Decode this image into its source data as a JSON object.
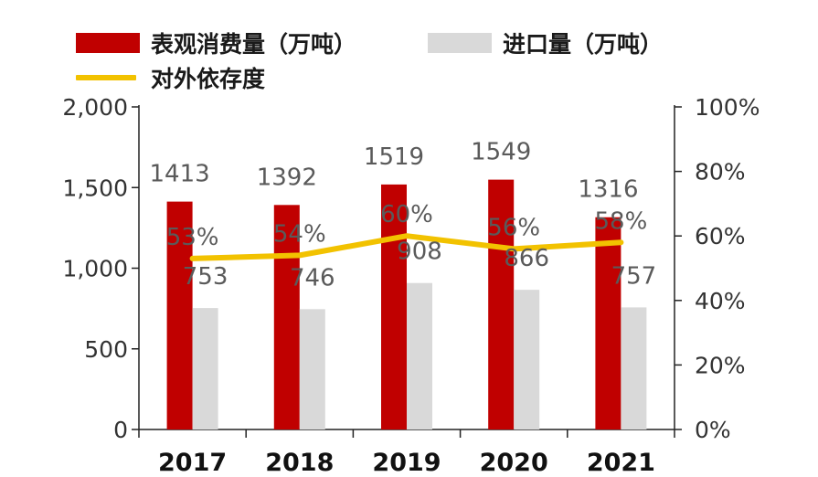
{
  "legend": {
    "items": [
      {
        "label": "表观消费量（万吨）",
        "color": "#c00000",
        "kind": "bar"
      },
      {
        "label": "进口量（万吨）",
        "color": "#d9d9d9",
        "kind": "bar"
      },
      {
        "label": "对外依存度",
        "color": "#f2c200",
        "kind": "line"
      }
    ]
  },
  "chart_data": {
    "type": "bar",
    "categories": [
      "2017",
      "2018",
      "2019",
      "2020",
      "2021"
    ],
    "series": [
      {
        "name": "表观消费量（万吨）",
        "type": "bar",
        "axis": "left",
        "color": "#c00000",
        "values": [
          1413,
          1392,
          1519,
          1549,
          1316
        ],
        "labels": [
          "1413",
          "1392",
          "1519",
          "1549",
          "1316"
        ]
      },
      {
        "name": "进口量（万吨）",
        "type": "bar",
        "axis": "left",
        "color": "#d9d9d9",
        "values": [
          753,
          746,
          908,
          866,
          757
        ],
        "labels": [
          "753",
          "746",
          "908",
          "866",
          "757"
        ]
      },
      {
        "name": "对外依存度",
        "type": "line",
        "axis": "right",
        "color": "#f2c200",
        "values": [
          53,
          54,
          60,
          56,
          58
        ],
        "labels": [
          "53%",
          "54%",
          "60%",
          "56%",
          "58%"
        ]
      }
    ],
    "y_left": {
      "range": [
        0,
        2000
      ],
      "ticks": [
        0,
        500,
        1000,
        1500,
        2000
      ],
      "tick_labels": [
        "0",
        "500",
        "1,000",
        "1,500",
        "2,000"
      ]
    },
    "y_right": {
      "range": [
        0,
        100
      ],
      "ticks": [
        0,
        20,
        40,
        60,
        80,
        100
      ],
      "tick_labels": [
        "0%",
        "20%",
        "40%",
        "60%",
        "80%",
        "100%"
      ]
    },
    "grid": false,
    "legend_position": "top"
  }
}
